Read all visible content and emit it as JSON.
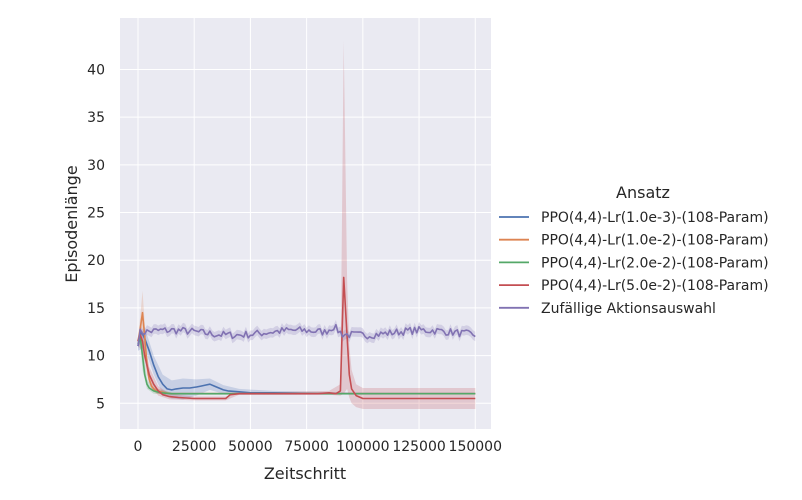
{
  "chart_data": {
    "type": "line",
    "xlabel": "Zeitschritt",
    "ylabel": "Episodenlänge",
    "xlim": [
      -8000,
      157000
    ],
    "ylim": [
      2.3,
      45.4
    ],
    "xticks": [
      0,
      25000,
      50000,
      75000,
      100000,
      125000,
      150000
    ],
    "yticks": [
      5,
      10,
      15,
      20,
      25,
      30,
      35,
      40
    ],
    "grid": true,
    "legend": {
      "title": "Ansatz",
      "placement": "right"
    },
    "series": [
      {
        "name": "PPO(4,4)-Lr(1.0e-3)-(108-Param)",
        "color": "#4c72b0",
        "points": [
          [
            0,
            11.0
          ],
          [
            1500,
            12.5
          ],
          [
            3000,
            11.8
          ],
          [
            5000,
            10.5
          ],
          [
            7000,
            9.0
          ],
          [
            9000,
            7.8
          ],
          [
            11000,
            7.0
          ],
          [
            13000,
            6.5
          ],
          [
            15000,
            6.4
          ],
          [
            17000,
            6.5
          ],
          [
            20000,
            6.6
          ],
          [
            23000,
            6.6
          ],
          [
            26000,
            6.7
          ],
          [
            28000,
            6.8
          ],
          [
            30000,
            6.9
          ],
          [
            32000,
            7.0
          ],
          [
            34000,
            6.8
          ],
          [
            36000,
            6.6
          ],
          [
            38000,
            6.4
          ],
          [
            40000,
            6.3
          ],
          [
            45000,
            6.2
          ],
          [
            50000,
            6.1
          ],
          [
            60000,
            6.1
          ],
          [
            70000,
            6.05
          ],
          [
            80000,
            6.0
          ],
          [
            90000,
            6.0
          ],
          [
            100000,
            6.0
          ],
          [
            125000,
            6.0
          ],
          [
            150000,
            6.0
          ]
        ],
        "band": [
          [
            0,
            10.5,
            11.5
          ],
          [
            3000,
            10.8,
            13.0
          ],
          [
            7000,
            8.0,
            10.0
          ],
          [
            11000,
            6.0,
            8.0
          ],
          [
            15000,
            5.5,
            7.4
          ],
          [
            20000,
            5.4,
            7.6
          ],
          [
            26000,
            5.8,
            7.5
          ],
          [
            32000,
            6.4,
            7.6
          ],
          [
            38000,
            6.0,
            6.9
          ],
          [
            45000,
            5.9,
            6.5
          ],
          [
            60000,
            5.9,
            6.3
          ],
          [
            100000,
            5.9,
            6.1
          ],
          [
            150000,
            5.95,
            6.05
          ]
        ]
      },
      {
        "name": "PPO(4,4)-Lr(1.0e-2)-(108-Param)",
        "color": "#dd8452",
        "points": [
          [
            0,
            11.5
          ],
          [
            1000,
            12.8
          ],
          [
            2000,
            14.5
          ],
          [
            3000,
            12.0
          ],
          [
            4000,
            9.0
          ],
          [
            5000,
            7.5
          ],
          [
            6000,
            6.8
          ],
          [
            7000,
            6.5
          ],
          [
            8000,
            6.3
          ],
          [
            10000,
            6.2
          ],
          [
            12000,
            6.1
          ],
          [
            15000,
            6.0
          ],
          [
            20000,
            6.0
          ],
          [
            50000,
            6.0
          ],
          [
            100000,
            6.0
          ],
          [
            150000,
            6.0
          ]
        ],
        "band": [
          [
            0,
            11.0,
            12.0
          ],
          [
            1000,
            11.8,
            14.0
          ],
          [
            2000,
            12.5,
            16.8
          ],
          [
            3000,
            10.5,
            13.5
          ],
          [
            4000,
            8.0,
            10.0
          ],
          [
            6000,
            6.4,
            7.2
          ],
          [
            8000,
            6.0,
            6.6
          ],
          [
            15000,
            5.9,
            6.1
          ],
          [
            150000,
            5.95,
            6.05
          ]
        ]
      },
      {
        "name": "PPO(4,4)-Lr(2.0e-2)-(108-Param)",
        "color": "#55a868",
        "points": [
          [
            0,
            11.2
          ],
          [
            1000,
            12.0
          ],
          [
            2000,
            10.0
          ],
          [
            3000,
            8.0
          ],
          [
            4000,
            7.0
          ],
          [
            5000,
            6.6
          ],
          [
            7000,
            6.3
          ],
          [
            10000,
            6.1
          ],
          [
            15000,
            6.0
          ],
          [
            20000,
            6.0
          ],
          [
            50000,
            6.0
          ],
          [
            100000,
            6.0
          ],
          [
            150000,
            6.0
          ]
        ],
        "band": [
          [
            0,
            10.8,
            11.6
          ],
          [
            1000,
            11.2,
            12.8
          ],
          [
            2000,
            8.5,
            11.5
          ],
          [
            4000,
            6.5,
            7.5
          ],
          [
            7000,
            6.0,
            6.6
          ],
          [
            15000,
            5.9,
            6.1
          ],
          [
            150000,
            5.95,
            6.05
          ]
        ]
      },
      {
        "name": "PPO(4,4)-Lr(5.0e-2)-(108-Param)",
        "color": "#c44e52",
        "points": [
          [
            0,
            11.5
          ],
          [
            1000,
            12.2
          ],
          [
            2000,
            11.5
          ],
          [
            3000,
            10.0
          ],
          [
            5000,
            8.0
          ],
          [
            7000,
            7.0
          ],
          [
            9000,
            6.3
          ],
          [
            11000,
            5.9
          ],
          [
            14000,
            5.7
          ],
          [
            18000,
            5.6
          ],
          [
            25000,
            5.5
          ],
          [
            35000,
            5.5
          ],
          [
            39000,
            5.5
          ],
          [
            41000,
            5.9
          ],
          [
            45000,
            6.0
          ],
          [
            60000,
            6.0
          ],
          [
            80000,
            6.0
          ],
          [
            85000,
            6.1
          ],
          [
            88000,
            6.0
          ],
          [
            90000,
            6.3
          ],
          [
            91500,
            18.2
          ],
          [
            93000,
            12.0
          ],
          [
            94000,
            8.0
          ],
          [
            95000,
            6.5
          ],
          [
            97000,
            5.8
          ],
          [
            100000,
            5.5
          ],
          [
            110000,
            5.5
          ],
          [
            130000,
            5.5
          ],
          [
            150000,
            5.5
          ]
        ],
        "band": [
          [
            0,
            11.0,
            12.0
          ],
          [
            2000,
            10.5,
            12.5
          ],
          [
            5000,
            7.2,
            8.8
          ],
          [
            9000,
            5.8,
            6.8
          ],
          [
            14000,
            5.4,
            6.0
          ],
          [
            25000,
            5.3,
            5.7
          ],
          [
            39000,
            5.3,
            5.7
          ],
          [
            45000,
            5.9,
            6.1
          ],
          [
            85000,
            5.9,
            6.3
          ],
          [
            90000,
            5.8,
            7.0
          ],
          [
            91500,
            6.0,
            43.0
          ],
          [
            93000,
            6.5,
            18.0
          ],
          [
            94000,
            5.6,
            11.0
          ],
          [
            95000,
            5.0,
            8.5
          ],
          [
            97000,
            4.6,
            7.0
          ],
          [
            100000,
            4.4,
            6.6
          ],
          [
            150000,
            4.4,
            6.6
          ]
        ]
      },
      {
        "name": "Zufällige Aktionsauswahl",
        "color": "#8172b2",
        "noisy": {
          "start": 0,
          "end": 150000,
          "step": 1000,
          "mean": 12.4,
          "amplitude": 0.4,
          "band_width": 1.0,
          "bump_at": 87000,
          "bump_height": 0.7
        }
      }
    ]
  }
}
